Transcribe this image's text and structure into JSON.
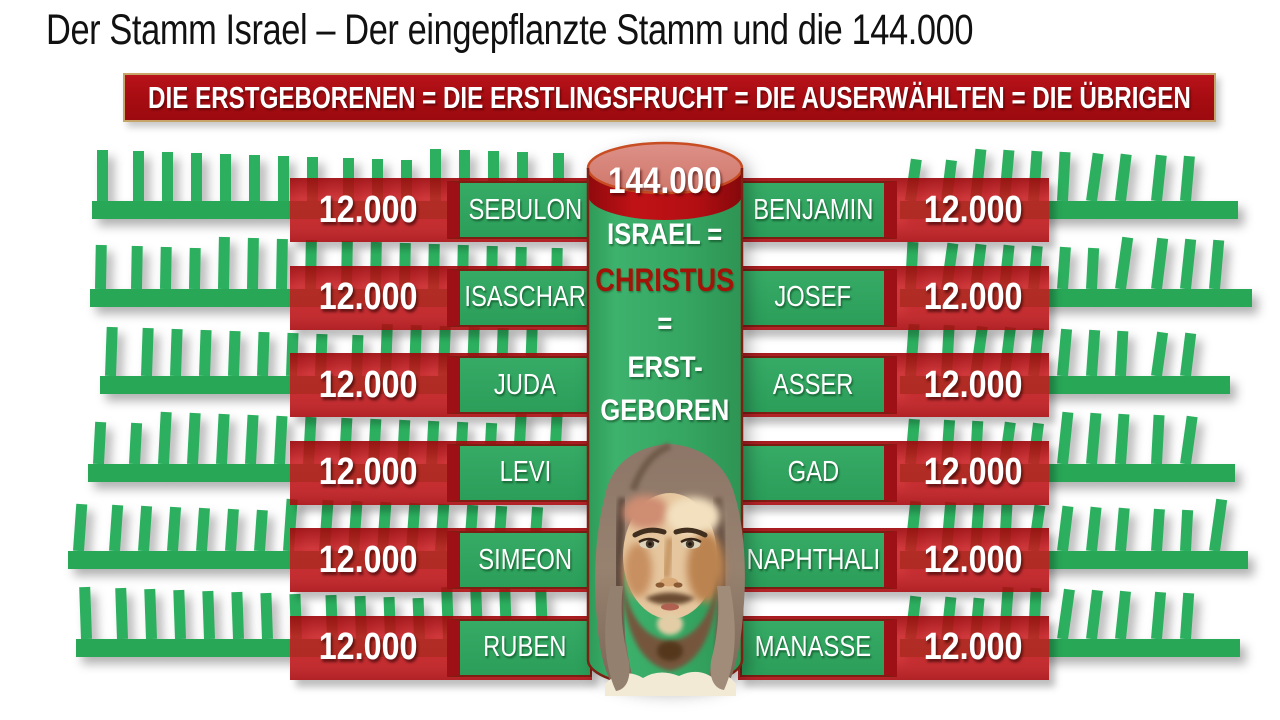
{
  "title": "Der Stamm Israel – Der eingepflanzte Stamm und die 144.000",
  "banner": "DIE ERSTGEBORENEN = DIE ERSTLINGSFRUCHT = DIE AUSERWÄHLTEN = DIE ÜBRIGEN",
  "cylinder": {
    "total": "144.000",
    "line1": "ISRAEL =",
    "line2": "CHRISTUS",
    "line3": "=",
    "line4": "ERST-",
    "line5": "GEBOREN",
    "line6": "=",
    "figure": "jesus-face-watercolor"
  },
  "rows": [
    {
      "left_count": "12.000",
      "left_tribe": "SEBULON",
      "right_tribe": "BENJAMIN",
      "right_count": "12.000"
    },
    {
      "left_count": "12.000",
      "left_tribe": "ISASCHAR",
      "right_tribe": "JOSEF",
      "right_count": "12.000"
    },
    {
      "left_count": "12.000",
      "left_tribe": "JUDA",
      "right_tribe": "ASSER",
      "right_count": "12.000"
    },
    {
      "left_count": "12.000",
      "left_tribe": "LEVI",
      "right_tribe": "GAD",
      "right_count": "12.000"
    },
    {
      "left_count": "12.000",
      "left_tribe": "SIMEON",
      "right_tribe": "NAPHTHALI",
      "right_count": "12.000"
    },
    {
      "left_count": "12.000",
      "left_tribe": "RUBEN",
      "right_tribe": "MANASSE",
      "right_count": "12.000"
    }
  ],
  "colors": {
    "branch_green": "#2cb05f",
    "box_green": "#2ea25f",
    "cylinder_green": "#38a765",
    "slab_red": "#c01318",
    "banner_red": "#ad0d12",
    "lid_salmon": "#d8847b",
    "christus_red": "#a31408"
  }
}
